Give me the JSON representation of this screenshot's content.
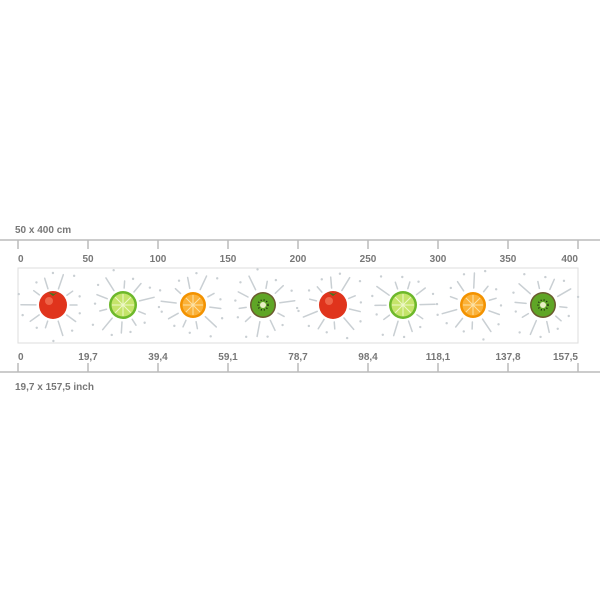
{
  "top_ruler": {
    "label": "50 x 400 cm",
    "ticks": [
      0,
      50,
      100,
      150,
      200,
      250,
      300,
      350,
      400
    ]
  },
  "bottom_ruler": {
    "label": "19,7 x 157,5 inch",
    "ticks": [
      "0",
      "19,7",
      "39,4",
      "59,1",
      "78,7",
      "98,4",
      "118,1",
      "137,8",
      "157,5"
    ]
  }
}
